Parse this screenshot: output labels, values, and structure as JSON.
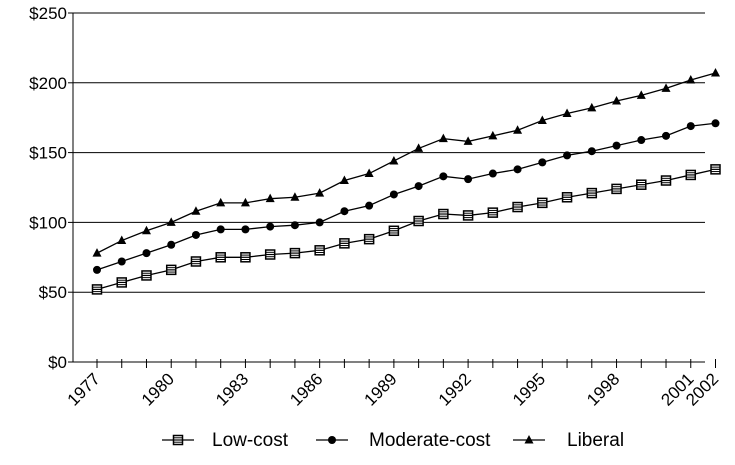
{
  "chart_data": {
    "type": "line",
    "title": "",
    "xlabel": "",
    "ylabel": "",
    "x": [
      1977,
      1978,
      1979,
      1980,
      1981,
      1982,
      1983,
      1984,
      1985,
      1986,
      1987,
      1988,
      1989,
      1990,
      1991,
      1992,
      1993,
      1994,
      1995,
      1996,
      1997,
      1998,
      1999,
      2000,
      2001,
      2002
    ],
    "x_tick_labels": [
      "1977",
      "1980",
      "1983",
      "1986",
      "1989",
      "1992",
      "1995",
      "1998",
      "2001",
      "2002"
    ],
    "x_tick_years": [
      1977,
      1980,
      1983,
      1986,
      1989,
      1992,
      1995,
      1998,
      2001,
      2002
    ],
    "ylim": [
      0,
      250
    ],
    "y_ticks": [
      0,
      50,
      100,
      150,
      200,
      250
    ],
    "y_tick_labels": [
      "$0",
      "$50",
      "$100",
      "$150",
      "$200",
      "$250"
    ],
    "grid": "horizontal",
    "legend_position": "bottom",
    "series": [
      {
        "name": "Low-cost",
        "marker": "square",
        "values": [
          52,
          57,
          62,
          66,
          72,
          75,
          75,
          77,
          78,
          80,
          85,
          88,
          94,
          101,
          106,
          105,
          107,
          111,
          114,
          118,
          121,
          124,
          127,
          130,
          134,
          138
        ]
      },
      {
        "name": "Moderate-cost",
        "marker": "circle",
        "values": [
          66,
          72,
          78,
          84,
          91,
          95,
          95,
          97,
          98,
          100,
          108,
          112,
          120,
          126,
          133,
          131,
          135,
          138,
          143,
          148,
          151,
          155,
          159,
          162,
          169,
          171
        ]
      },
      {
        "name": "Liberal",
        "marker": "triangle",
        "values": [
          78,
          87,
          94,
          100,
          108,
          114,
          114,
          117,
          118,
          121,
          130,
          135,
          144,
          153,
          160,
          158,
          162,
          166,
          173,
          178,
          182,
          187,
          191,
          196,
          202,
          207
        ]
      }
    ]
  }
}
